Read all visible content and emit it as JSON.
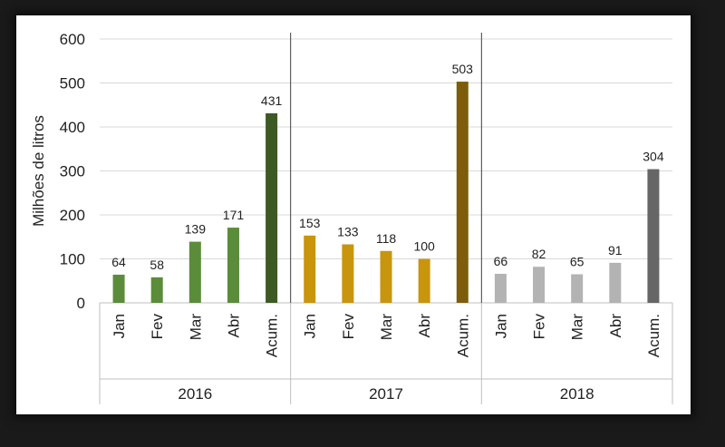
{
  "chart_data": {
    "type": "bar",
    "title": "",
    "xlabel": "",
    "ylabel": "Milhões de litros",
    "ylim": [
      0,
      600
    ],
    "yticks": [
      0,
      100,
      200,
      300,
      400,
      500,
      600
    ],
    "grid": true,
    "groups": [
      {
        "name": "2016",
        "categories": [
          "Jan",
          "Fev",
          "Mar",
          "Abr",
          "Acum."
        ],
        "values": [
          64,
          58,
          139,
          171,
          431
        ],
        "colors": [
          "#5b8c3a",
          "#5b8c3a",
          "#5b8c3a",
          "#5b8c3a",
          "#3d5a24"
        ]
      },
      {
        "name": "2017",
        "categories": [
          "Jan",
          "Fev",
          "Mar",
          "Abr",
          "Acum."
        ],
        "values": [
          153,
          133,
          118,
          100,
          503
        ],
        "colors": [
          "#c9950c",
          "#c9950c",
          "#c9950c",
          "#c9950c",
          "#7d5d0a"
        ]
      },
      {
        "name": "2018",
        "categories": [
          "Jan",
          "Fev",
          "Mar",
          "Abr",
          "Acum."
        ],
        "values": [
          66,
          82,
          65,
          91,
          304
        ],
        "colors": [
          "#b3b3b3",
          "#b3b3b3",
          "#b3b3b3",
          "#b3b3b3",
          "#666666"
        ]
      }
    ]
  }
}
